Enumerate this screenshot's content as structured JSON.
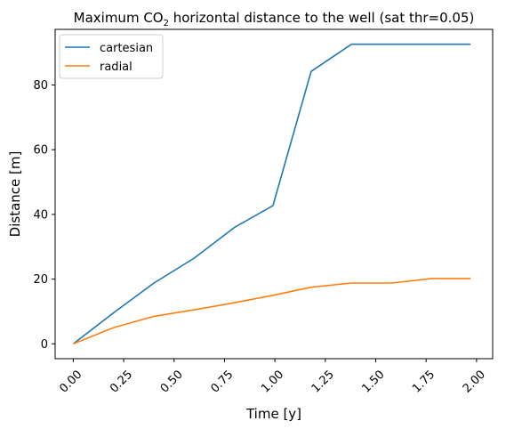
{
  "chart_data": {
    "type": "line",
    "title_prefix": "Maximum CO",
    "title_subscript": "2",
    "title_suffix": " horizontal distance to the well (sat thr=0.05)",
    "xlabel": "Time [y]",
    "ylabel": "Distance [m]",
    "xlim": [
      -0.09,
      2.08
    ],
    "ylim": [
      -4.6,
      97.2
    ],
    "x_ticks": [
      0,
      0.25,
      0.5,
      0.75,
      1.0,
      1.25,
      1.5,
      1.75,
      2.0
    ],
    "x_tick_labels": [
      "0.00",
      "0.25",
      "0.50",
      "0.75",
      "1.00",
      "1.25",
      "1.50",
      "1.75",
      "2.00"
    ],
    "y_ticks": [
      0,
      20,
      40,
      60,
      80
    ],
    "y_tick_labels": [
      "0",
      "20",
      "40",
      "60",
      "80"
    ],
    "grid": false,
    "legend_position": "top-left",
    "series": [
      {
        "name": "cartesian",
        "color": "#1f77b4",
        "x": [
          0.0,
          0.2,
          0.4,
          0.6,
          0.8,
          0.99,
          1.18,
          1.38,
          1.58,
          1.78,
          1.97
        ],
        "y": [
          0.0,
          9.6,
          18.8,
          26.5,
          36.0,
          42.7,
          84.2,
          92.6,
          92.6,
          92.6,
          92.6
        ]
      },
      {
        "name": "radial",
        "color": "#ff7f0e",
        "x": [
          0.0,
          0.2,
          0.4,
          0.6,
          0.8,
          0.99,
          1.18,
          1.38,
          1.58,
          1.78,
          1.97
        ],
        "y": [
          0.0,
          5.0,
          8.5,
          10.5,
          12.7,
          15.0,
          17.5,
          18.8,
          18.8,
          20.2,
          20.2
        ]
      }
    ]
  }
}
